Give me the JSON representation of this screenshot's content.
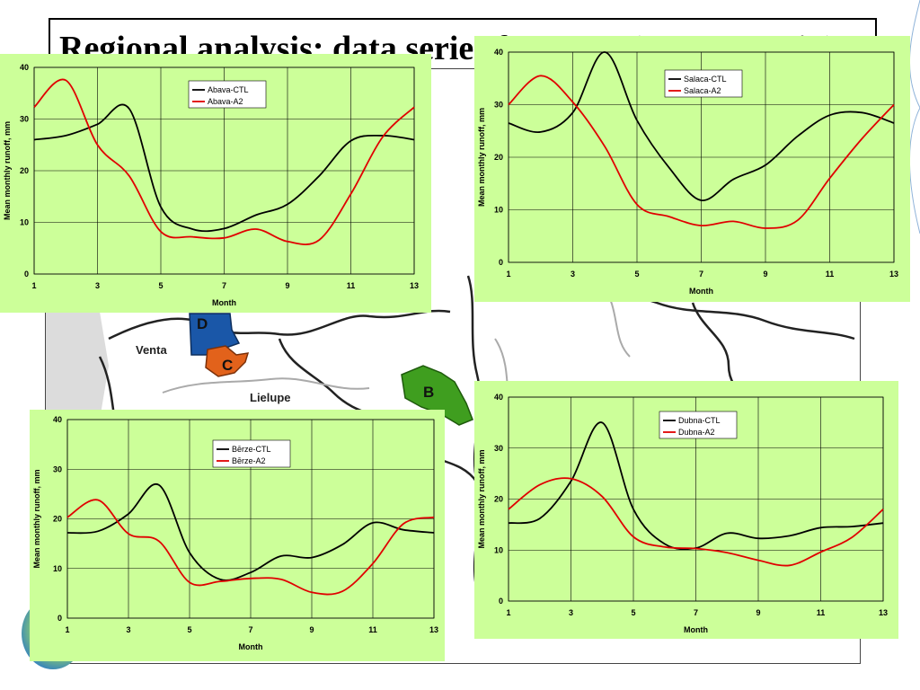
{
  "slide": {
    "title": "Regional analysis: data series for RRR (MIKE Basin)",
    "map_labels": {
      "venta": "Venta",
      "lielupe": "Lielupe",
      "d": "D",
      "c": "C",
      "b": "B"
    },
    "colors": {
      "panel_bg": "#ccff99",
      "ctl": "#000000",
      "a2": "#e00000",
      "region_d": "#1a57a8",
      "region_c": "#e2621b",
      "region_b": "#3f9e1f"
    }
  },
  "chart_data": [
    {
      "id": "abava",
      "type": "line",
      "x": [
        1,
        2,
        3,
        4,
        5,
        6,
        7,
        8,
        9,
        10,
        11,
        12,
        13
      ],
      "series": [
        {
          "name": "Abava-CTL",
          "color": "#000000",
          "values": [
            26,
            26.8,
            29,
            32,
            13,
            8.7,
            8.8,
            11.4,
            13.5,
            19,
            25.8,
            26.8,
            26
          ]
        },
        {
          "name": "Abava-A2",
          "color": "#e00000",
          "values": [
            32.3,
            37.5,
            25,
            19,
            8.2,
            7.2,
            7.0,
            8.7,
            6.3,
            6.6,
            15.5,
            26.5,
            32.3
          ]
        }
      ],
      "xlabel": "Month",
      "ylabel": "Mean monthly runoff, mm",
      "xticks": [
        1,
        3,
        5,
        7,
        9,
        11,
        13
      ],
      "yticks": [
        0,
        10,
        20,
        30,
        40
      ],
      "ylim": [
        0,
        40
      ],
      "xlim": [
        1,
        13
      ],
      "grid": true,
      "legend_position": "top-center"
    },
    {
      "id": "salaca",
      "type": "line",
      "x": [
        1,
        2,
        3,
        4,
        5,
        6,
        7,
        8,
        9,
        10,
        11,
        12,
        13
      ],
      "series": [
        {
          "name": "Salaca-CTL",
          "color": "#000000",
          "values": [
            26.5,
            24.8,
            28.5,
            40,
            27,
            18,
            11.8,
            15.8,
            18.5,
            24,
            28,
            28.5,
            26.5
          ]
        },
        {
          "name": "Salaca-A2",
          "color": "#e00000",
          "values": [
            30,
            35.5,
            30.5,
            22,
            11,
            8.7,
            7.0,
            7.8,
            6.5,
            8.0,
            16,
            23.5,
            30
          ]
        }
      ],
      "xlabel": "Month",
      "ylabel": "Mean monthly runoff, mm",
      "xticks": [
        1,
        3,
        5,
        7,
        9,
        11,
        13
      ],
      "yticks": [
        0,
        10,
        20,
        30,
        40
      ],
      "ylim": [
        0,
        40
      ],
      "xlim": [
        1,
        13
      ],
      "grid": true,
      "legend_position": "top-center"
    },
    {
      "id": "berze",
      "type": "line",
      "x": [
        1,
        2,
        3,
        4,
        5,
        6,
        7,
        8,
        9,
        10,
        11,
        12,
        13
      ],
      "series": [
        {
          "name": "Bērze-CTL",
          "color": "#000000",
          "values": [
            17.2,
            17.5,
            21,
            26.8,
            13.2,
            7.8,
            9.2,
            12.5,
            12.2,
            14.8,
            19.2,
            17.8,
            17.2
          ]
        },
        {
          "name": "Bērze-A2",
          "color": "#e00000",
          "values": [
            20.3,
            23.8,
            17,
            15.5,
            7.2,
            7.4,
            8.0,
            7.8,
            5.2,
            5.4,
            11,
            19,
            20.3
          ]
        }
      ],
      "xlabel": "Month",
      "ylabel": "Mean monthly runoff, mm",
      "xticks": [
        1,
        3,
        5,
        7,
        9,
        11,
        13
      ],
      "yticks": [
        0,
        10,
        20,
        30,
        40
      ],
      "ylim": [
        0,
        40
      ],
      "xlim": [
        1,
        13
      ],
      "grid": true,
      "legend_position": "top-center"
    },
    {
      "id": "dubna",
      "type": "line",
      "x": [
        1,
        2,
        3,
        4,
        5,
        6,
        7,
        8,
        9,
        10,
        11,
        12,
        13
      ],
      "series": [
        {
          "name": "Dubna-CTL",
          "color": "#000000",
          "values": [
            15.3,
            16.2,
            23.5,
            35,
            18,
            11.2,
            10.4,
            13.3,
            12.3,
            12.8,
            14.4,
            14.6,
            15.3
          ]
        },
        {
          "name": "Dubna-A2",
          "color": "#e00000",
          "values": [
            18,
            22.8,
            24,
            20.5,
            12.6,
            10.6,
            10.3,
            9.5,
            8.0,
            7.0,
            9.6,
            12.5,
            18
          ]
        }
      ],
      "xlabel": "Month",
      "ylabel": "Mean monthly runoff, mm",
      "xticks": [
        1,
        3,
        5,
        7,
        9,
        11,
        13
      ],
      "yticks": [
        0,
        10,
        20,
        30,
        40
      ],
      "ylim": [
        0,
        40
      ],
      "xlim": [
        1,
        13
      ],
      "grid": true,
      "legend_position": "top-center"
    }
  ]
}
